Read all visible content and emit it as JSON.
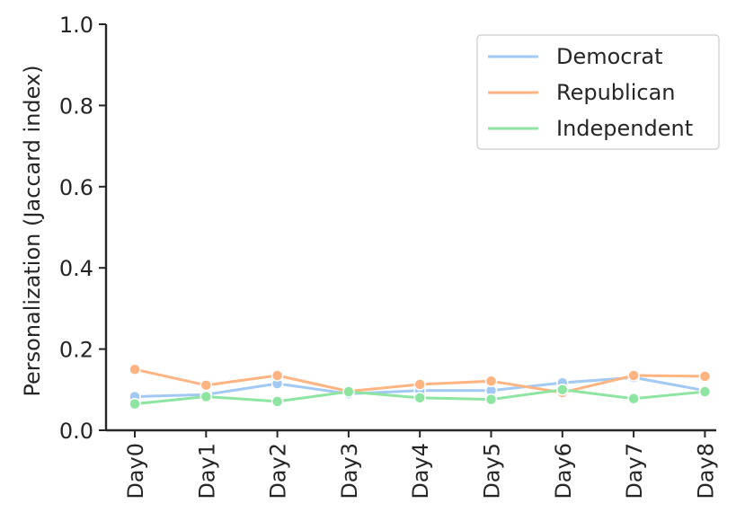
{
  "chart_data": {
    "type": "line",
    "ylabel": "Personalization (Jaccard index)",
    "xlabel": "",
    "ylim": [
      0.0,
      1.0
    ],
    "yticks": [
      "0.0",
      "0.2",
      "0.4",
      "0.6",
      "0.8",
      "1.0"
    ],
    "categories": [
      "Day0",
      "Day1",
      "Day2",
      "Day3",
      "Day4",
      "Day5",
      "Day6",
      "Day7",
      "Day8"
    ],
    "legend_position": "top-right",
    "grid": false,
    "series": [
      {
        "name": "Democrat",
        "color": "#a1c9f4",
        "values": [
          0.083,
          0.088,
          0.115,
          0.09,
          0.098,
          0.098,
          0.117,
          0.13,
          0.098
        ]
      },
      {
        "name": "Republican",
        "color": "#ffb482",
        "values": [
          0.15,
          0.111,
          0.135,
          0.096,
          0.113,
          0.121,
          0.093,
          0.135,
          0.133
        ]
      },
      {
        "name": "Independent",
        "color": "#8de5a1",
        "values": [
          0.065,
          0.083,
          0.071,
          0.095,
          0.08,
          0.076,
          0.1,
          0.078,
          0.095
        ]
      }
    ]
  }
}
